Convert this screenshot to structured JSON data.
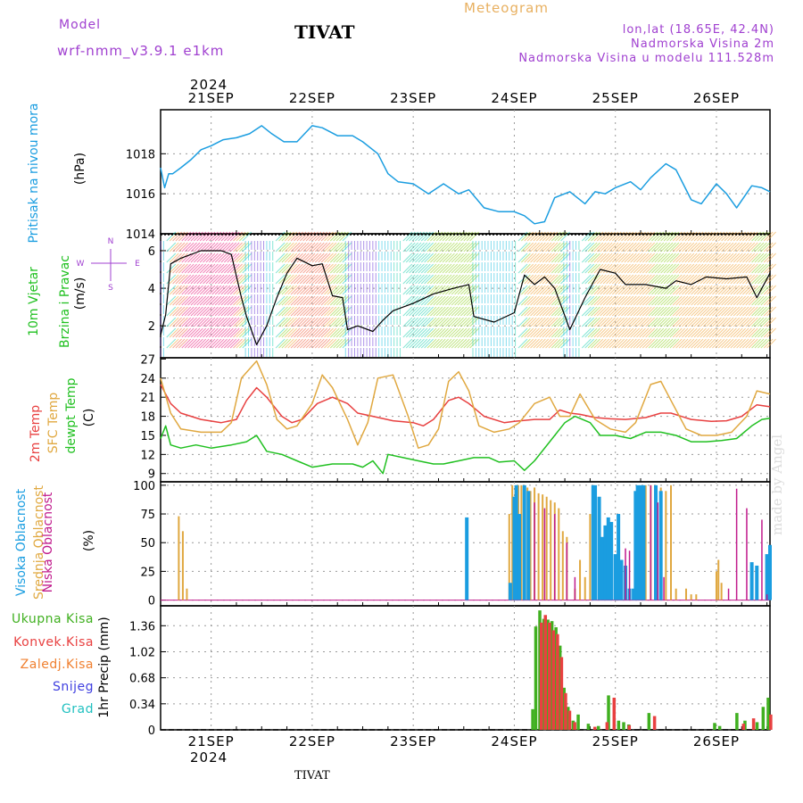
{
  "header": {
    "model_label": "Model",
    "model_name": "wrf-nmm_v3.9.1 e1km",
    "station": "TIVAT",
    "title": "Meteogram",
    "location": "lon,lat (18.65E, 42.4N)",
    "elevation": "Nadmorska Visina 2m",
    "model_elevation": "Nadmorska Visina u modelu 111.528m",
    "year": "2024",
    "bottom_station": "TIVAT",
    "credit": "made by Angel"
  },
  "colors": {
    "pressure": "#1a9de0",
    "temp2m": "#e84040",
    "sfc": "#e0a840",
    "dewpt": "#20c020",
    "high_cloud": "#1a9de0",
    "mid_cloud": "#e0a840",
    "low_cloud": "#c01a8c",
    "total_precip": "#40b020",
    "conv_precip": "#e84040",
    "frozen": "#f08030",
    "snow": "#4040e0",
    "hail": "#20c0c0",
    "wind_label": "#20c020",
    "compass": "#a040d0"
  },
  "chart_data": [
    {
      "id": "pressure",
      "type": "line",
      "ylabel_lines": [
        "Pritisak na nivou mora",
        "(hPa)"
      ],
      "ylim": [
        1014,
        1020.2
      ],
      "yticks": [
        "1014",
        "1016",
        "1018"
      ],
      "ytick_values": [
        1014,
        1016,
        1018
      ],
      "x_day_labels": [
        "21SEP",
        "22SEP",
        "23SEP",
        "24SEP",
        "25SEP",
        "26SEP"
      ],
      "xlim": [
        -0.5,
        5.53
      ],
      "x": [
        -0.5,
        -0.46,
        -0.42,
        -0.38,
        -0.3,
        -0.2,
        -0.1,
        0.0,
        0.12,
        0.25,
        0.38,
        0.5,
        0.6,
        0.72,
        0.85,
        1.0,
        1.1,
        1.25,
        1.4,
        1.5,
        1.65,
        1.75,
        1.85,
        2.0,
        2.15,
        2.3,
        2.45,
        2.55,
        2.7,
        2.85,
        3.0,
        3.1,
        3.2,
        3.3,
        3.4,
        3.55,
        3.7,
        3.8,
        3.9,
        4.0,
        4.15,
        4.25,
        4.35,
        4.5,
        4.6,
        4.75,
        4.85,
        5.0,
        5.1,
        5.2,
        5.35,
        5.45,
        5.53
      ],
      "y": [
        1017.3,
        1016.3,
        1017.0,
        1017.0,
        1017.3,
        1017.7,
        1018.2,
        1018.4,
        1018.7,
        1018.8,
        1019.0,
        1019.4,
        1019.0,
        1018.6,
        1018.6,
        1019.4,
        1019.3,
        1018.9,
        1018.9,
        1018.6,
        1018.0,
        1017.0,
        1016.6,
        1016.5,
        1016.0,
        1016.5,
        1016.0,
        1016.2,
        1015.3,
        1015.1,
        1015.1,
        1014.9,
        1014.5,
        1014.6,
        1015.8,
        1016.1,
        1015.5,
        1016.1,
        1016.0,
        1016.3,
        1016.6,
        1016.2,
        1016.8,
        1017.5,
        1017.2,
        1015.7,
        1015.5,
        1016.5,
        1016.0,
        1015.3,
        1016.4,
        1016.3,
        1016.1
      ]
    },
    {
      "id": "wind",
      "type": "line",
      "ylabel_lines": [
        "10m Vjetar",
        "Brzina i Pravac",
        "(m/s)"
      ],
      "compass": {
        "n": "N",
        "s": "S",
        "w": "W",
        "e": "E"
      },
      "ylim": [
        0.3,
        6.9
      ],
      "yticks": [
        "2",
        "4",
        "6"
      ],
      "ytick_values": [
        2,
        4,
        6
      ],
      "xlim": [
        -0.5,
        5.53
      ],
      "x": [
        -0.5,
        -0.45,
        -0.4,
        -0.3,
        -0.1,
        0.1,
        0.2,
        0.3,
        0.35,
        0.45,
        0.55,
        0.65,
        0.75,
        0.85,
        1.0,
        1.1,
        1.2,
        1.3,
        1.35,
        1.45,
        1.6,
        1.7,
        1.8,
        2.0,
        2.2,
        2.4,
        2.55,
        2.6,
        2.8,
        3.0,
        3.1,
        3.2,
        3.3,
        3.4,
        3.55,
        3.7,
        3.85,
        4.0,
        4.1,
        4.3,
        4.5,
        4.6,
        4.75,
        4.9,
        5.1,
        5.3,
        5.4,
        5.53
      ],
      "y": [
        1.5,
        2.6,
        5.3,
        5.6,
        6.0,
        6.0,
        5.8,
        3.5,
        2.5,
        1.0,
        2.0,
        3.5,
        4.8,
        5.6,
        5.2,
        5.3,
        3.6,
        3.5,
        1.8,
        2.0,
        1.7,
        2.3,
        2.8,
        3.2,
        3.7,
        4.0,
        4.2,
        2.5,
        2.2,
        2.7,
        4.7,
        4.2,
        4.6,
        4.0,
        1.8,
        3.5,
        5.0,
        4.8,
        4.2,
        4.2,
        4.0,
        4.4,
        4.2,
        4.6,
        4.5,
        4.6,
        3.5,
        4.8
      ]
    },
    {
      "id": "temperature",
      "type": "line",
      "ylabel_lines": [
        "2m Temp",
        "SFC Temp",
        "dewpt Temp",
        "(C)"
      ],
      "ylim": [
        7.7,
        27.2
      ],
      "yticks": [
        "9",
        "12",
        "15",
        "18",
        "21",
        "24",
        "27"
      ],
      "ytick_values": [
        9,
        12,
        15,
        18,
        21,
        24,
        27
      ],
      "xlim": [
        -0.5,
        5.53
      ],
      "series": [
        {
          "key": "temp2m",
          "x": [
            -0.5,
            -0.4,
            -0.3,
            -0.1,
            0.1,
            0.25,
            0.35,
            0.45,
            0.55,
            0.7,
            0.8,
            0.9,
            1.05,
            1.2,
            1.35,
            1.45,
            1.6,
            1.8,
            2.0,
            2.1,
            2.2,
            2.35,
            2.45,
            2.55,
            2.7,
            2.9,
            3.0,
            3.2,
            3.35,
            3.45,
            3.55,
            3.65,
            3.8,
            3.95,
            4.1,
            4.3,
            4.45,
            4.55,
            4.75,
            4.95,
            5.1,
            5.25,
            5.4,
            5.53
          ],
          "y": [
            23.0,
            20.0,
            18.5,
            17.5,
            17.0,
            17.5,
            20.5,
            22.5,
            21.0,
            18.0,
            17.0,
            17.5,
            20.0,
            21.0,
            20.0,
            18.5,
            18.0,
            17.3,
            17.0,
            16.5,
            17.5,
            20.5,
            21.0,
            20.0,
            18.0,
            17.0,
            17.2,
            17.5,
            17.5,
            19.0,
            18.5,
            18.3,
            17.8,
            17.6,
            17.5,
            17.8,
            18.5,
            18.5,
            17.5,
            17.2,
            17.3,
            18.0,
            19.8,
            19.5
          ]
        },
        {
          "key": "sfc",
          "x": [
            -0.5,
            -0.4,
            -0.3,
            -0.1,
            0.1,
            0.2,
            0.3,
            0.45,
            0.55,
            0.65,
            0.75,
            0.85,
            1.0,
            1.1,
            1.2,
            1.35,
            1.45,
            1.55,
            1.65,
            1.8,
            1.95,
            2.05,
            2.15,
            2.25,
            2.35,
            2.45,
            2.55,
            2.65,
            2.8,
            2.95,
            3.05,
            3.2,
            3.35,
            3.45,
            3.55,
            3.65,
            3.8,
            3.95,
            4.1,
            4.2,
            4.35,
            4.45,
            4.55,
            4.7,
            4.85,
            5.0,
            5.15,
            5.3,
            5.4,
            5.53
          ],
          "y": [
            24.0,
            18.5,
            16.0,
            15.5,
            15.5,
            17.0,
            24.0,
            26.7,
            23.0,
            17.5,
            16.0,
            16.5,
            20.0,
            24.5,
            22.5,
            17.5,
            13.5,
            17.0,
            24.0,
            24.5,
            18.0,
            13.0,
            13.5,
            16.0,
            23.5,
            25.0,
            22.0,
            16.5,
            15.5,
            16.0,
            17.0,
            20.0,
            21.0,
            18.0,
            18.0,
            21.5,
            17.5,
            16.0,
            15.5,
            17.0,
            23.0,
            23.5,
            20.5,
            16.0,
            15.0,
            15.0,
            15.5,
            18.0,
            22.0,
            21.5
          ]
        },
        {
          "key": "dewpt",
          "x": [
            -0.5,
            -0.45,
            -0.4,
            -0.3,
            -0.15,
            0.0,
            0.2,
            0.35,
            0.45,
            0.55,
            0.7,
            0.85,
            1.0,
            1.2,
            1.4,
            1.5,
            1.6,
            1.7,
            1.75,
            1.9,
            2.05,
            2.2,
            2.3,
            2.45,
            2.6,
            2.75,
            2.85,
            3.0,
            3.1,
            3.2,
            3.35,
            3.5,
            3.6,
            3.75,
            3.85,
            4.0,
            4.15,
            4.3,
            4.45,
            4.6,
            4.75,
            4.9,
            5.05,
            5.2,
            5.35,
            5.45,
            5.53
          ],
          "y": [
            14.5,
            16.5,
            13.5,
            13.0,
            13.5,
            13.0,
            13.5,
            14.0,
            15.0,
            12.5,
            12.0,
            11.0,
            10.0,
            10.5,
            10.5,
            10.0,
            11.0,
            9.0,
            12.0,
            11.5,
            11.0,
            10.5,
            10.5,
            11.0,
            11.5,
            11.5,
            10.8,
            11.0,
            9.5,
            11.0,
            14.0,
            17.0,
            18.0,
            17.0,
            15.0,
            15.0,
            14.5,
            15.5,
            15.5,
            15.0,
            14.0,
            14.0,
            14.2,
            14.5,
            16.5,
            17.5,
            17.7
          ]
        }
      ]
    },
    {
      "id": "clouds",
      "type": "bar",
      "ylabel_lines": [
        "Visoka Oblacnost",
        "Srednja Oblacnost",
        "Niska Oblacnost",
        "(%)"
      ],
      "ylim": [
        -5,
        103
      ],
      "yticks": [
        "0",
        "25",
        "50",
        "75",
        "100"
      ],
      "ytick_values": [
        0,
        25,
        50,
        75,
        100
      ],
      "xlim": [
        -0.5,
        5.53
      ],
      "series": [
        {
          "key": "mid_cloud",
          "x": [
            -0.32,
            -0.28,
            -0.24,
            2.95,
            2.98,
            3.01,
            3.04,
            3.07,
            3.1,
            3.13,
            3.16,
            3.2,
            3.24,
            3.28,
            3.32,
            3.36,
            3.4,
            3.44,
            3.48,
            3.52,
            3.6,
            3.65,
            3.7,
            3.75,
            3.8,
            3.85,
            3.9,
            4.0,
            4.05,
            4.3,
            4.35,
            4.4,
            4.45,
            4.5,
            4.55,
            4.6,
            4.7,
            4.75,
            4.8,
            5.0,
            5.02,
            5.05
          ],
          "y": [
            73,
            60,
            10,
            75,
            100,
            100,
            100,
            100,
            100,
            98,
            95,
            98,
            93,
            92,
            90,
            87,
            85,
            80,
            60,
            55,
            10,
            35,
            20,
            75,
            35,
            15,
            10,
            30,
            15,
            100,
            100,
            100,
            98,
            95,
            100,
            10,
            10,
            5,
            5,
            25,
            35,
            15
          ]
        },
        {
          "key": "high_cloud",
          "x": [
            2.53,
            2.96,
            3.0,
            3.02,
            3.05,
            3.1,
            3.14,
            3.78,
            3.8,
            3.84,
            3.87,
            3.9,
            3.93,
            3.96,
            4.0,
            4.03,
            4.06,
            4.1,
            4.14,
            4.18,
            4.2,
            4.22,
            4.25,
            4.28,
            4.4,
            4.45,
            5.35,
            5.4,
            5.5,
            5.53
          ],
          "y": [
            72,
            15,
            90,
            100,
            75,
            100,
            95,
            100,
            100,
            90,
            55,
            65,
            72,
            68,
            40,
            75,
            35,
            30,
            10,
            10,
            95,
            100,
            100,
            100,
            100,
            95,
            33,
            30,
            40,
            48
          ]
        },
        {
          "key": "low_cloud",
          "x": [
            3.2,
            3.3,
            3.4,
            3.52,
            3.6,
            4.1,
            4.14,
            4.35,
            4.42,
            4.48,
            5.12,
            5.2,
            5.3,
            5.45,
            5.5
          ],
          "y": [
            85,
            80,
            75,
            50,
            20,
            45,
            43,
            100,
            85,
            20,
            10,
            97,
            80,
            70,
            5
          ]
        }
      ]
    },
    {
      "id": "precip",
      "type": "bar",
      "ylabel_lines": [
        "1hr Precip (mm)"
      ],
      "legend": [
        "Ukupna Kisa",
        "Konvek.Kisa",
        "Zaledj.Kisa",
        "Snijeg",
        "Grad"
      ],
      "ylim": [
        0,
        1.62
      ],
      "yticks": [
        "0",
        "0.34",
        "0.68",
        "1.02",
        "1.36"
      ],
      "ytick_values": [
        0,
        0.34,
        0.68,
        1.02,
        1.36
      ],
      "x_day_labels": [
        "21SEP",
        "22SEP",
        "23SEP",
        "24SEP",
        "25SEP",
        "26SEP"
      ],
      "xlim": [
        -0.5,
        5.53
      ],
      "series": [
        {
          "key": "total_precip",
          "x": [
            3.2,
            3.23,
            3.27,
            3.31,
            3.35,
            3.39,
            3.43,
            3.47,
            3.51,
            3.55,
            3.6,
            3.65,
            3.75,
            3.85,
            3.95,
            4.05,
            4.1,
            4.15,
            4.35,
            5.0,
            5.05,
            5.22,
            5.3,
            5.42,
            5.48,
            5.53
          ],
          "y": [
            0.27,
            1.35,
            1.56,
            1.45,
            1.44,
            1.42,
            1.34,
            1.1,
            0.55,
            0.3,
            0.12,
            0.2,
            0.08,
            0.05,
            0.45,
            0.12,
            0.1,
            0.07,
            0.22,
            0.09,
            0.05,
            0.22,
            0.12,
            0.1,
            0.3,
            0.42
          ]
        },
        {
          "key": "conv_precip",
          "x": [
            3.25,
            3.29,
            3.33,
            3.37,
            3.41,
            3.45,
            3.49,
            3.53,
            3.58,
            3.78,
            3.9,
            3.97,
            4.12,
            4.37,
            5.25,
            5.35,
            5.52
          ],
          "y": [
            1.4,
            1.5,
            1.4,
            1.3,
            1.25,
            0.95,
            0.48,
            0.25,
            0.1,
            0.04,
            0.1,
            0.42,
            0.06,
            0.18,
            0.08,
            0.15,
            0.2
          ]
        }
      ]
    }
  ]
}
